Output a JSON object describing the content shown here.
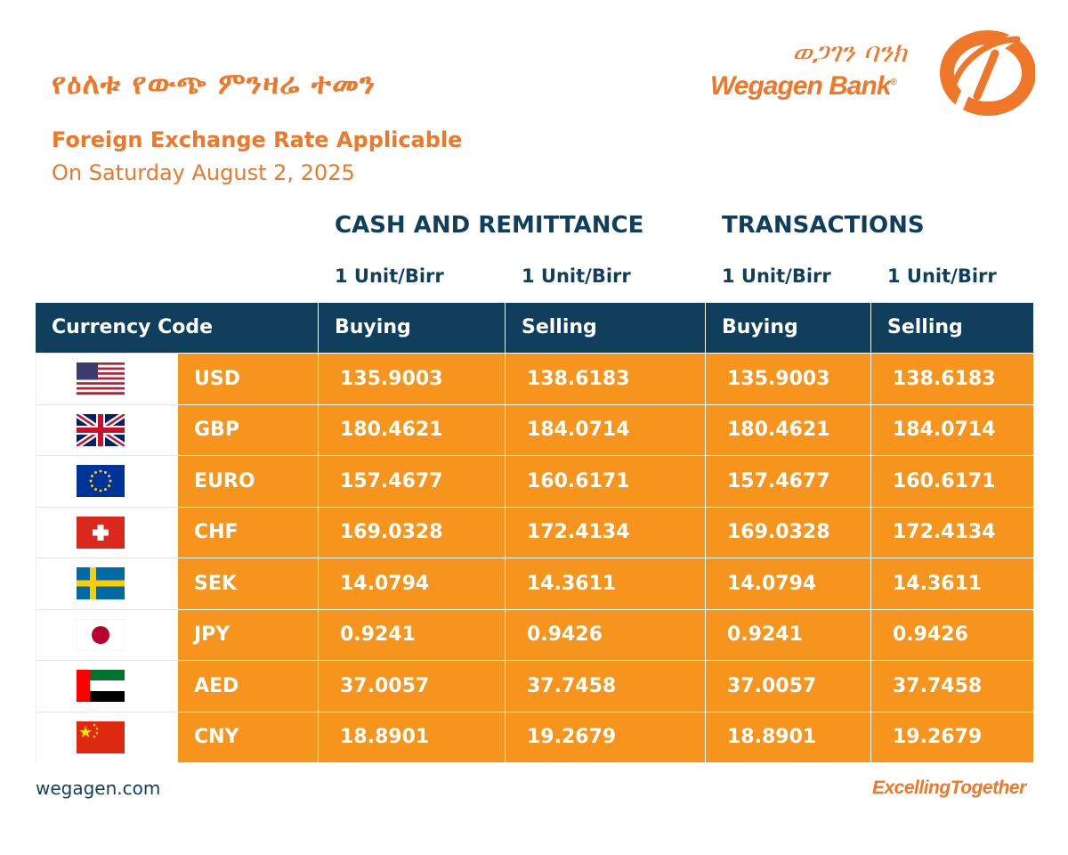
{
  "header": {
    "title_am": "የዕለቱ የውጭ ምንዛሬ ተመን",
    "subtitle": "Foreign Exchange Rate Applicable",
    "date": "On Saturday August 2, 2025"
  },
  "logo": {
    "name_am": "ወጋገን ባንክ",
    "name_en": "Wegagen Bank",
    "registered": "®",
    "brand_color": "#f0772a"
  },
  "groups": {
    "cash": "CASH AND REMITTANCE",
    "transactions": "TRANSACTIONS"
  },
  "unit_label": "1 Unit/Birr",
  "table": {
    "header_color": "#0f3f5d",
    "row_color": "#f7941d",
    "columns": [
      "Currency Code",
      "Buying",
      "Selling",
      "Buying",
      "Selling"
    ],
    "rows": [
      {
        "flag": "us-flag-icon",
        "code": "USD",
        "cash_buy": "135.9003",
        "cash_sell": "138.6183",
        "tx_buy": "135.9003",
        "tx_sell": "138.6183"
      },
      {
        "flag": "uk-flag-icon",
        "code": "GBP",
        "cash_buy": "180.4621",
        "cash_sell": "184.0714",
        "tx_buy": "180.4621",
        "tx_sell": "184.0714"
      },
      {
        "flag": "eu-flag-icon",
        "code": "EURO",
        "cash_buy": "157.4677",
        "cash_sell": "160.6171",
        "tx_buy": "157.4677",
        "tx_sell": "160.6171"
      },
      {
        "flag": "ch-flag-icon",
        "code": "CHF",
        "cash_buy": "169.0328",
        "cash_sell": "172.4134",
        "tx_buy": "169.0328",
        "tx_sell": "172.4134"
      },
      {
        "flag": "se-flag-icon",
        "code": "SEK",
        "cash_buy": "14.0794",
        "cash_sell": "14.3611",
        "tx_buy": "14.0794",
        "tx_sell": "14.3611"
      },
      {
        "flag": "jp-flag-icon",
        "code": "JPY",
        "cash_buy": "0.9241",
        "cash_sell": "0.9426",
        "tx_buy": "0.9241",
        "tx_sell": "0.9426"
      },
      {
        "flag": "ae-flag-icon",
        "code": "AED",
        "cash_buy": "37.0057",
        "cash_sell": "37.7458",
        "tx_buy": "37.0057",
        "tx_sell": "37.7458"
      },
      {
        "flag": "cn-flag-icon",
        "code": "CNY",
        "cash_buy": "18.8901",
        "cash_sell": "19.2679",
        "tx_buy": "18.8901",
        "tx_sell": "19.2679"
      }
    ]
  },
  "footer": {
    "url": "wegagen.com",
    "tagline": "ExcellingTogether"
  }
}
